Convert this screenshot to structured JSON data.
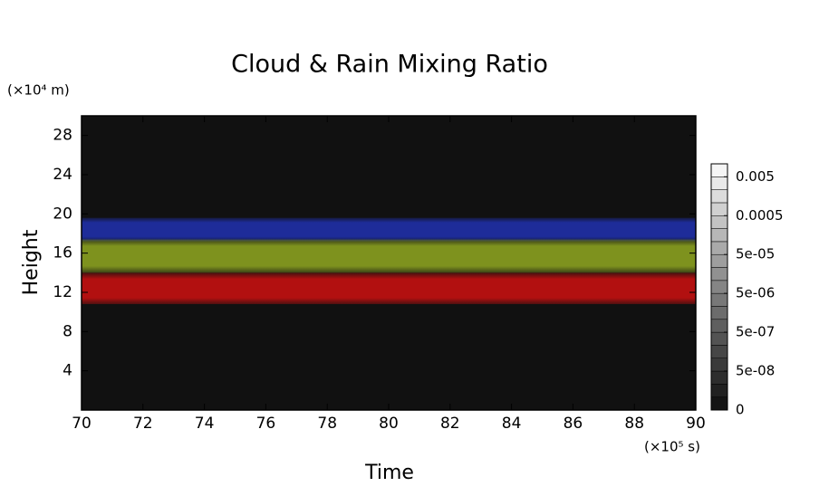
{
  "chart_data": {
    "type": "heatmap",
    "title": "Cloud & Rain Mixing Ratio",
    "x_label": "Time",
    "y_label": "Height",
    "x_unit": "(×10⁵ s)",
    "y_unit": "(×10⁴ m)",
    "xlim": [
      70,
      90
    ],
    "xticks": [
      70,
      72,
      74,
      76,
      78,
      80,
      82,
      84,
      86,
      88,
      90
    ],
    "ylim": [
      0,
      30
    ],
    "yticks": [
      4,
      8,
      12,
      16,
      20,
      24,
      28
    ],
    "background": "#111111",
    "series": [
      {
        "color": "#1f2fa8",
        "values": [
          17.2,
          19.6
        ]
      },
      {
        "color": "#8aa020",
        "values": [
          14,
          17.4
        ]
      },
      {
        "color": "#c41010",
        "values": [
          10.8,
          14
        ]
      }
    ],
    "colorbar": {
      "ticks": [
        0,
        {
          "value": 5e-08,
          "label": "5e-08"
        },
        {
          "value": 5e-07,
          "label": "5e-07"
        },
        {
          "value": 5e-06,
          "label": "5e-06"
        },
        {
          "value": 5e-05,
          "label": "5e-05"
        },
        0.0005,
        0.005
      ]
    }
  }
}
